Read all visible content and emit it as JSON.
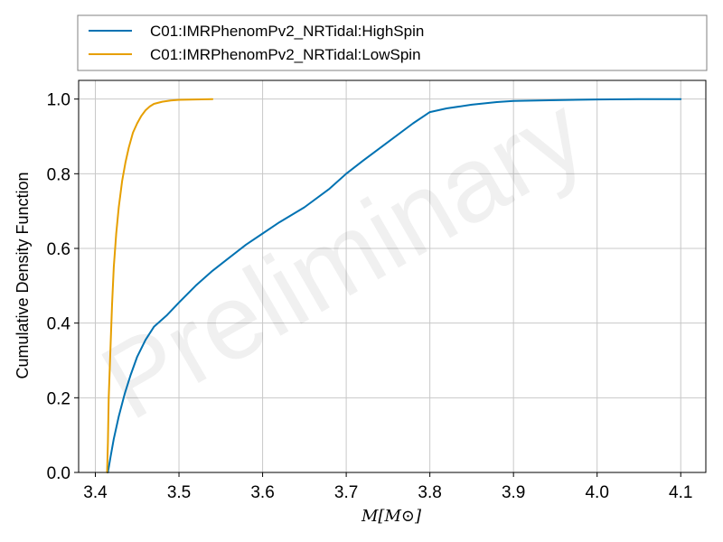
{
  "watermark": "Preliminary",
  "chart_data": {
    "type": "line",
    "title": "",
    "xlabel": "M[M⊙]",
    "ylabel": "Cumulative Density Function",
    "xlim": [
      3.38,
      4.13
    ],
    "ylim": [
      0.0,
      1.05
    ],
    "xticks": [
      3.4,
      3.5,
      3.6,
      3.7,
      3.8,
      3.9,
      4.0,
      4.1
    ],
    "xtick_labels": [
      "3.4",
      "3.5",
      "3.6",
      "3.7",
      "3.8",
      "3.9",
      "4.0",
      "4.1"
    ],
    "yticks": [
      0.0,
      0.2,
      0.4,
      0.6,
      0.8,
      1.0
    ],
    "ytick_labels": [
      "0.0",
      "0.2",
      "0.4",
      "0.6",
      "0.8",
      "1.0"
    ],
    "grid": true,
    "legend_position": "top, outside plot area",
    "series": [
      {
        "name": "C01:IMRPhenomPv2_NRTidal:HighSpin",
        "color": "#0072b2",
        "x": [
          3.415,
          3.418,
          3.422,
          3.428,
          3.435,
          3.442,
          3.45,
          3.46,
          3.47,
          3.485,
          3.5,
          3.52,
          3.54,
          3.56,
          3.58,
          3.6,
          3.62,
          3.65,
          3.68,
          3.7,
          3.72,
          3.75,
          3.78,
          3.8,
          3.82,
          3.85,
          3.88,
          3.9,
          3.95,
          4.0,
          4.05,
          4.1
        ],
        "y": [
          0.0,
          0.04,
          0.09,
          0.15,
          0.21,
          0.26,
          0.31,
          0.355,
          0.39,
          0.42,
          0.455,
          0.5,
          0.54,
          0.575,
          0.61,
          0.64,
          0.67,
          0.71,
          0.76,
          0.8,
          0.835,
          0.885,
          0.935,
          0.965,
          0.975,
          0.985,
          0.992,
          0.995,
          0.997,
          0.999,
          1.0,
          1.0
        ]
      },
      {
        "name": "C01:IMRPhenomPv2_NRTidal:LowSpin",
        "color": "#e69f00",
        "x": [
          3.414,
          3.415,
          3.416,
          3.418,
          3.42,
          3.422,
          3.425,
          3.428,
          3.432,
          3.436,
          3.44,
          3.445,
          3.45,
          3.455,
          3.46,
          3.465,
          3.47,
          3.48,
          3.49,
          3.5,
          3.52,
          3.54
        ],
        "y": [
          0.0,
          0.08,
          0.2,
          0.33,
          0.45,
          0.55,
          0.64,
          0.71,
          0.78,
          0.83,
          0.87,
          0.91,
          0.935,
          0.955,
          0.97,
          0.98,
          0.987,
          0.993,
          0.996,
          0.998,
          0.999,
          1.0
        ]
      }
    ]
  }
}
